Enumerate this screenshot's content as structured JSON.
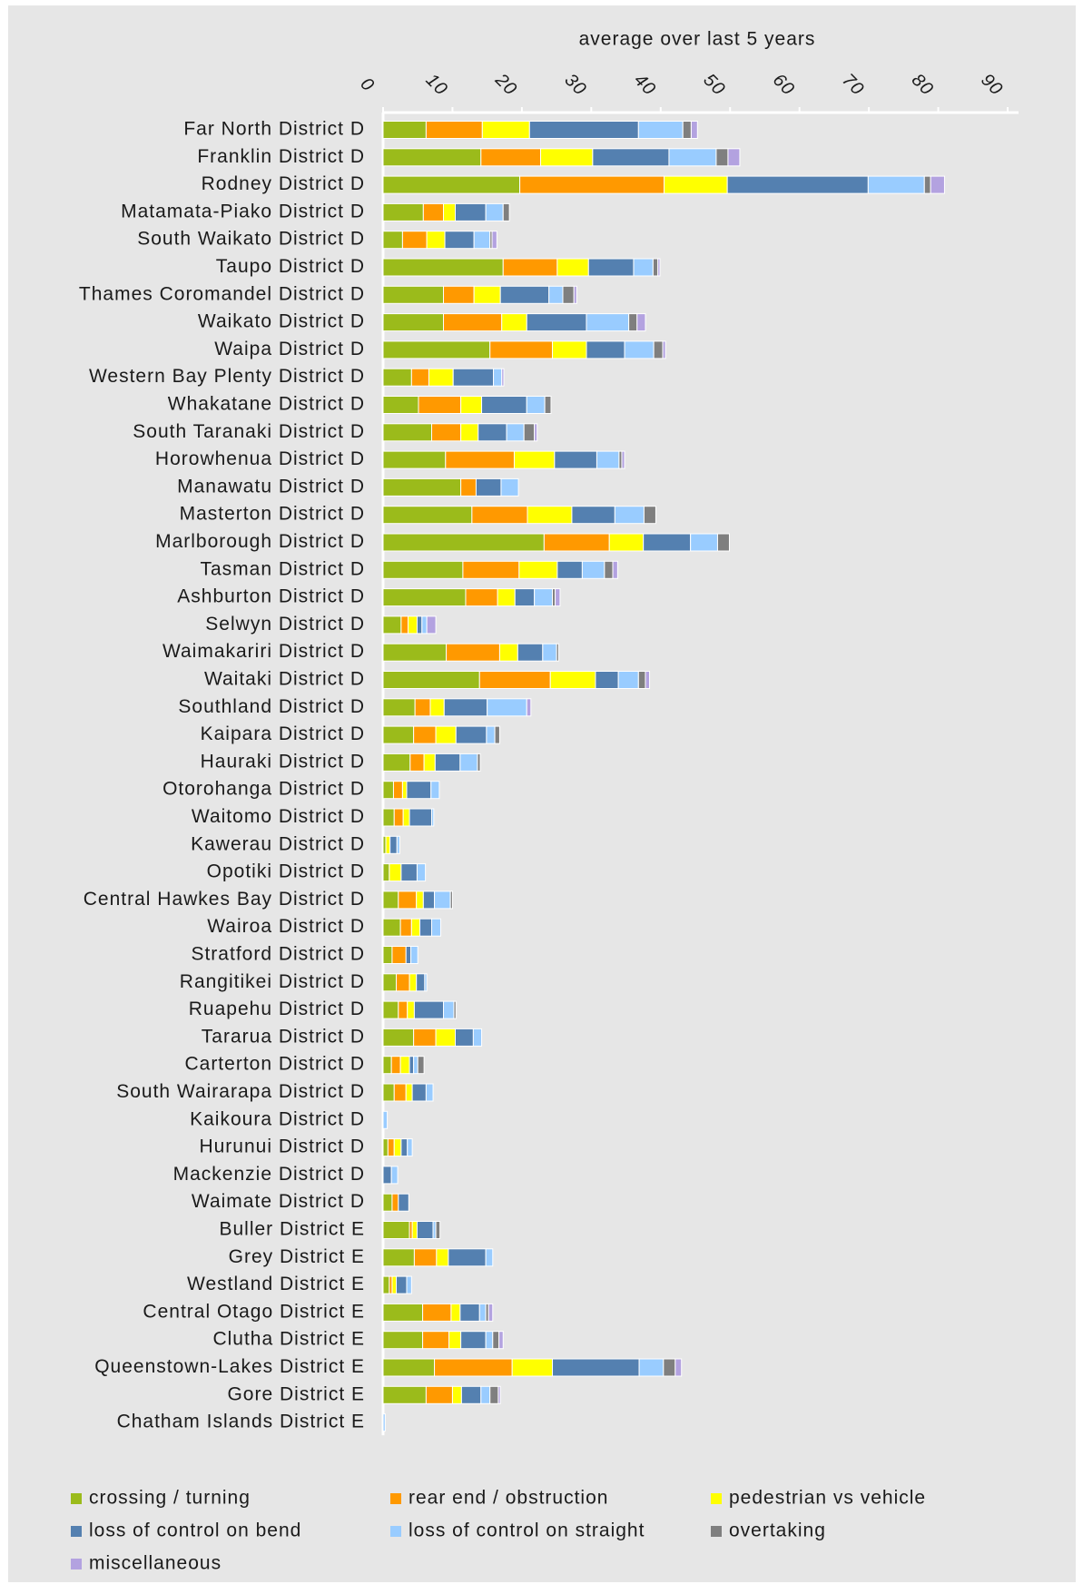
{
  "chart_data": {
    "type": "stacked-barh",
    "x_label": "average over last 5 years",
    "xlim": [
      0,
      90
    ],
    "xticks": [
      0,
      10,
      20,
      30,
      40,
      50,
      60,
      70,
      80,
      90
    ],
    "legend": "bottom",
    "categories": [
      "Far North District D",
      "Franklin District D",
      "Rodney District D",
      "Matamata-Piako District D",
      "South Waikato District D",
      "Taupo District D",
      "Thames Coromandel District D",
      "Waikato District D",
      "Waipa District D",
      "Western Bay Plenty District D",
      "Whakatane District D",
      "South Taranaki District D",
      "Horowhenua District D",
      "Manawatu District D",
      "Masterton District D",
      "Marlborough District D",
      "Tasman District D",
      "Ashburton District D",
      "Selwyn District D",
      "Waimakariri District D",
      "Waitaki District D",
      "Southland District D",
      "Kaipara District D",
      "Hauraki District D",
      "Otorohanga District D",
      "Waitomo District D",
      "Kawerau District D",
      "Opotiki District D",
      "Central Hawkes Bay District D",
      "Wairoa District D",
      "Stratford District D",
      "Rangitikei District D",
      "Ruapehu District D",
      "Tararua District D",
      "Carterton District D",
      "South Wairarapa District D",
      "Kaikoura District D",
      "Hurunui District D",
      "Mackenzie District D",
      "Waimate District D",
      "Buller District E",
      "Grey District E",
      "Westland District E",
      "Central Otago District E",
      "Clutha District E",
      "Queenstown-Lakes District E",
      "Gore District E",
      "Chatham Islands District E"
    ],
    "series": [
      {
        "name": "crossing / turning",
        "color": "#9bbb1b",
        "values": [
          6.2,
          14.1,
          19.7,
          5.8,
          2.8,
          17.3,
          8.7,
          8.7,
          15.4,
          4.1,
          5.1,
          7.0,
          9.0,
          11.2,
          12.8,
          23.2,
          11.5,
          11.9,
          2.6,
          9.1,
          13.9,
          4.6,
          4.4,
          3.9,
          1.5,
          1.6,
          0.4,
          0.9,
          2.2,
          2.5,
          1.3,
          1.9,
          2.2,
          4.4,
          1.2,
          1.6,
          0,
          0.7,
          0,
          1.3,
          3.8,
          4.5,
          0.9,
          5.7,
          5.7,
          7.4,
          6.2,
          0
        ]
      },
      {
        "name": "rear end / obstruction",
        "color": "#ff9900",
        "values": [
          8.1,
          8.6,
          20.8,
          2.9,
          3.5,
          7.8,
          4.4,
          8.4,
          9.0,
          2.5,
          6.1,
          4.2,
          9.9,
          2.2,
          8.0,
          9.4,
          8.1,
          4.6,
          1.0,
          7.7,
          10.2,
          2.2,
          3.2,
          2.0,
          1.3,
          1.3,
          0,
          0,
          2.6,
          1.6,
          2.0,
          1.9,
          1.3,
          3.2,
          1.3,
          1.7,
          0,
          0.9,
          0,
          0.9,
          0.4,
          3.2,
          0.4,
          4.1,
          3.8,
          11.2,
          3.8,
          0
        ]
      },
      {
        "name": "pedestrian vs vehicle",
        "color": "#ffff00",
        "values": [
          6.8,
          7.5,
          9.1,
          1.7,
          2.6,
          4.5,
          3.8,
          3.6,
          4.9,
          3.5,
          3.0,
          2.5,
          5.8,
          0,
          6.4,
          4.9,
          5.5,
          2.5,
          1.3,
          2.6,
          6.5,
          2.0,
          2.9,
          1.6,
          0.6,
          0.9,
          0.6,
          1.7,
          1.0,
          1.2,
          0,
          1.0,
          1.0,
          2.8,
          1.3,
          0.9,
          0,
          1.0,
          0,
          0,
          0.7,
          1.7,
          0.6,
          1.3,
          1.7,
          5.8,
          1.3,
          0
        ]
      },
      {
        "name": "loss of control on bend",
        "color": "#5480b0",
        "values": [
          15.7,
          11.0,
          20.3,
          4.4,
          4.2,
          6.5,
          7.0,
          8.6,
          5.5,
          5.8,
          6.5,
          4.1,
          6.1,
          3.6,
          6.2,
          6.8,
          3.6,
          2.8,
          0.7,
          3.6,
          3.3,
          6.2,
          4.4,
          3.6,
          3.5,
          3.2,
          1.0,
          2.3,
          1.6,
          1.7,
          0.7,
          1.2,
          4.2,
          2.6,
          0.6,
          2.0,
          0,
          0.9,
          1.2,
          1.5,
          2.3,
          5.4,
          1.5,
          2.8,
          3.6,
          12.5,
          2.8,
          0
        ]
      },
      {
        "name": "loss of control on straight",
        "color": "#99ccff",
        "values": [
          6.4,
          6.8,
          8.1,
          2.5,
          2.3,
          2.8,
          2.0,
          6.1,
          4.2,
          1.2,
          2.6,
          2.5,
          3.2,
          2.5,
          4.2,
          3.9,
          3.2,
          2.6,
          0.7,
          2.0,
          2.9,
          5.7,
          1.2,
          2.5,
          1.2,
          0.3,
          0.4,
          1.2,
          2.3,
          1.3,
          1.0,
          0.3,
          1.5,
          1.2,
          0.6,
          1.0,
          0.6,
          0.7,
          0.9,
          0,
          0.4,
          1.0,
          0.7,
          0.9,
          1.0,
          3.5,
          1.3,
          0.3
        ]
      },
      {
        "name": "overtaking",
        "color": "#7f7f7f",
        "values": [
          1.2,
          1.7,
          0.9,
          0.9,
          0.3,
          0.7,
          1.6,
          1.2,
          1.3,
          0,
          0.9,
          1.5,
          0.4,
          0,
          1.7,
          1.7,
          1.2,
          0.4,
          0,
          0.3,
          1.0,
          0,
          0.7,
          0.4,
          0,
          0,
          0,
          0,
          0.3,
          0,
          0,
          0,
          0.3,
          0,
          0.9,
          0,
          0,
          0,
          0,
          0,
          0.6,
          0,
          0,
          0.4,
          0.9,
          1.7,
          1.2,
          0
        ]
      },
      {
        "name": "miscellaneous",
        "color": "#b3a2e0",
        "values": [
          0.9,
          1.7,
          2.0,
          0,
          0.7,
          0.3,
          0.4,
          1.2,
          0.4,
          0.3,
          0,
          0.4,
          0.4,
          0,
          0,
          0,
          0.7,
          0.7,
          1.3,
          0,
          0.6,
          0.6,
          0,
          0,
          0,
          0,
          0,
          0,
          0,
          0,
          0,
          0,
          0,
          0,
          0,
          0,
          0,
          0,
          0,
          0,
          0,
          0,
          0,
          0.6,
          0.6,
          0.9,
          0.3,
          0
        ]
      }
    ]
  }
}
